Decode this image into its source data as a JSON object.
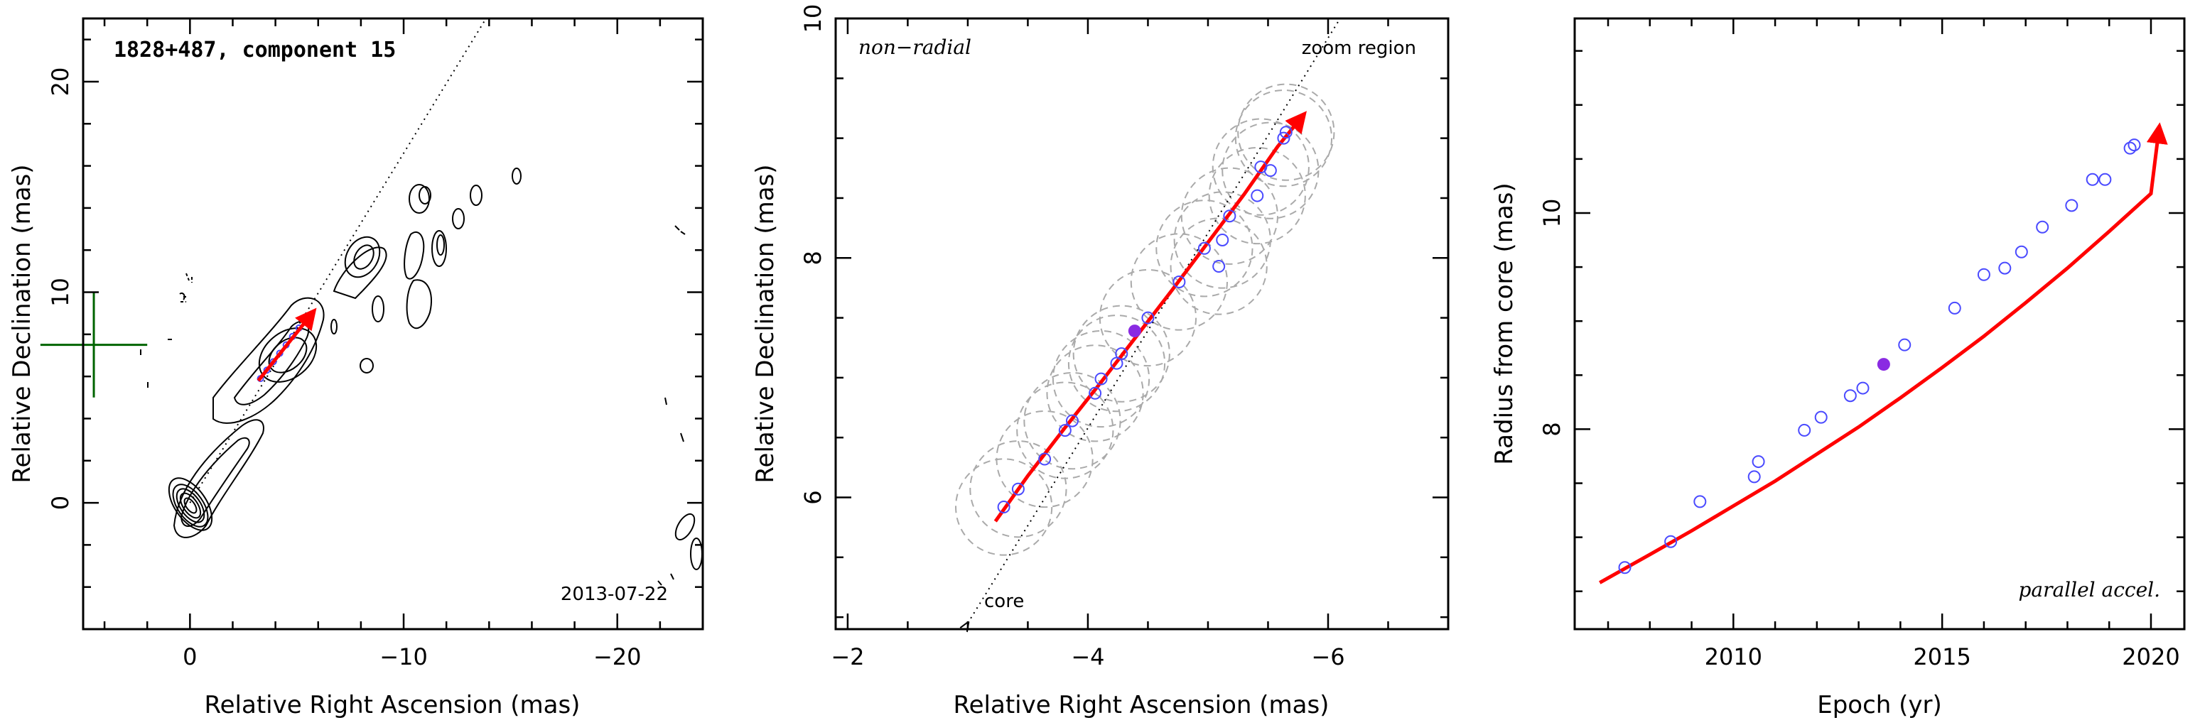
{
  "chart_data": [
    {
      "type": "scatter",
      "panel": "jet-map",
      "title": "1828+487, component 15",
      "epoch_label": "2013-07-22",
      "xlabel": "Relative Right Ascension (mas)",
      "ylabel": "Relative Declination (mas)",
      "xlim": [
        5,
        -24
      ],
      "ylim": [
        -6,
        23
      ],
      "xticks": [
        0,
        -10,
        -20
      ],
      "xtick_labels": [
        "0",
        "−10",
        "−20"
      ],
      "yticks": [
        0,
        10,
        20
      ],
      "ytick_labels": [
        "0",
        "10",
        "20"
      ],
      "zoom_box": {
        "x": [
          2,
          7
        ],
        "y": [
          5,
          10
        ]
      },
      "direction_line": {
        "from": [
          0,
          0
        ],
        "slope": 1.66
      },
      "trajectory": {
        "x": [
          -3.2,
          -5.8
        ],
        "y": [
          5.8,
          9.1
        ]
      },
      "position_points": {
        "x": [
          -3.3,
          -3.6,
          -3.9,
          -4.2,
          -4.5,
          -4.8,
          -5.1,
          -5.4,
          -5.6
        ],
        "y": [
          5.9,
          6.3,
          6.7,
          7.1,
          7.5,
          7.9,
          8.3,
          8.6,
          8.9
        ]
      },
      "colors": {
        "trajectory": "#ff0000",
        "points": "#4a4aff",
        "zoom_box": "#006400"
      }
    },
    {
      "type": "scatter",
      "panel": "zoom",
      "annotations": {
        "motion": "non−radial",
        "region": "zoom region",
        "core": "core"
      },
      "xlabel": "Relative Right Ascension (mas)",
      "ylabel": "Relative Declination (mas)",
      "xlim": [
        -1.9,
        -7
      ],
      "ylim": [
        4.9,
        10
      ],
      "xticks": [
        -2,
        -4,
        -6
      ],
      "xtick_labels": [
        "−2",
        "−4",
        "−6"
      ],
      "yticks": [
        6,
        8,
        10
      ],
      "ytick_labels": [
        "6",
        "8",
        "10"
      ],
      "core_line": {
        "x": [
          -3.0,
          -6.1
        ],
        "y": [
          4.95,
          10.0
        ]
      },
      "trajectory": {
        "x": [
          -3.23,
          -3.5,
          -3.8,
          -4.1,
          -4.4,
          -4.7,
          -5.0,
          -5.3,
          -5.58,
          -5.8
        ],
        "y": [
          5.8,
          6.18,
          6.57,
          6.95,
          7.34,
          7.73,
          8.13,
          8.53,
          8.93,
          9.2
        ]
      },
      "points": {
        "x": [
          -3.3,
          -3.42,
          -3.64,
          -3.81,
          -3.87,
          -4.06,
          -4.11,
          -4.24,
          -4.28,
          -4.5,
          -4.76,
          -4.97,
          -5.12,
          -5.09,
          -5.18,
          -5.41,
          -5.44,
          -5.52,
          -5.63,
          -5.65
        ],
        "y": [
          5.92,
          6.07,
          6.32,
          6.56,
          6.64,
          6.87,
          6.99,
          7.12,
          7.2,
          7.5,
          7.8,
          8.08,
          8.15,
          7.93,
          8.35,
          8.52,
          8.76,
          8.73,
          9.0,
          9.05
        ]
      },
      "highlight_point": {
        "x": -4.39,
        "y": 7.39
      },
      "component_circles": {
        "x": [
          -3.3,
          -3.42,
          -3.64,
          -3.81,
          -3.87,
          -4.06,
          -4.11,
          -4.24,
          -4.28,
          -4.5,
          -4.76,
          -4.97,
          -5.12,
          -5.09,
          -5.18,
          -5.41,
          -5.44,
          -5.52,
          -5.63,
          -5.65
        ],
        "y": [
          5.92,
          6.07,
          6.32,
          6.56,
          6.64,
          6.87,
          6.99,
          7.12,
          7.2,
          7.5,
          7.8,
          8.08,
          8.15,
          7.93,
          8.35,
          8.52,
          8.76,
          8.73,
          9.0,
          9.05
        ],
        "radius": 0.4
      },
      "colors": {
        "trajectory": "#ff0000",
        "points": "#4a4aff",
        "highlight": "#8a2be2",
        "circles": "#aaaaaa"
      }
    },
    {
      "type": "scatter",
      "panel": "radius-vs-epoch",
      "annotation": "parallel accel.",
      "xlabel": "Epoch (yr)",
      "ylabel": "Radius from core (mas)",
      "xlim": [
        2006.2,
        2020.8
      ],
      "ylim": [
        6.15,
        11.8
      ],
      "xticks": [
        2010,
        2015,
        2020
      ],
      "xtick_labels": [
        "2010",
        "2015",
        "2020"
      ],
      "yticks": [
        8,
        10
      ],
      "ytick_labels": [
        "8",
        "10"
      ],
      "fit": {
        "x": [
          2006.8,
          2008,
          2009,
          2010,
          2011,
          2012,
          2013,
          2014,
          2015,
          2016,
          2017,
          2018,
          2019,
          2020
        ],
        "y": [
          6.58,
          6.84,
          7.06,
          7.29,
          7.52,
          7.77,
          8.02,
          8.29,
          8.57,
          8.86,
          9.17,
          9.49,
          9.83,
          10.18
        ]
      },
      "arrow_tip": {
        "x": 2020.2,
        "y": 10.8
      },
      "points": {
        "x": [
          2007.4,
          2008.5,
          2009.2,
          2010.5,
          2010.6,
          2011.7,
          2012.1,
          2012.8,
          2013.1,
          2014.1,
          2015.3,
          2016.0,
          2016.5,
          2016.9,
          2017.4,
          2018.1,
          2018.6,
          2018.9,
          2019.5,
          2019.6
        ],
        "y": [
          6.72,
          6.96,
          7.33,
          7.56,
          7.7,
          7.99,
          8.11,
          8.31,
          8.38,
          8.78,
          9.12,
          9.43,
          9.49,
          9.64,
          9.87,
          10.07,
          10.31,
          10.31,
          10.6,
          10.63
        ]
      },
      "highlight_point": {
        "x": 2013.6,
        "y": 8.6
      },
      "colors": {
        "fit": "#ff0000",
        "points": "#4a4aff",
        "highlight": "#8a2be2"
      }
    }
  ]
}
